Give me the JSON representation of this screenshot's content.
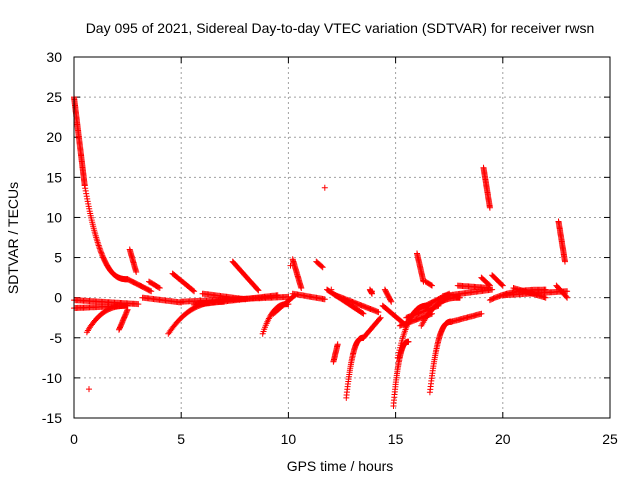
{
  "chart_data": {
    "type": "scatter",
    "title": "Day 095 of 2021, Sidereal Day-to-day VTEC variation (SDTVAR) for receiver rwsn",
    "xlabel": "GPS time / hours",
    "ylabel": "SDTVAR / TECUs",
    "xlim": [
      0,
      25
    ],
    "ylim": [
      -15,
      30
    ],
    "xticks": [
      0,
      5,
      10,
      15,
      20,
      25
    ],
    "yticks": [
      -15,
      -10,
      -5,
      0,
      5,
      10,
      15,
      20,
      25,
      30
    ],
    "grid": true,
    "marker": "+",
    "series": [
      {
        "name": "SDTVAR",
        "color": "#ff0000",
        "arcs": [
          {
            "x0": 0.0,
            "y0": 25.0,
            "x1": 0.5,
            "y1": 14.0,
            "kind": "line"
          },
          {
            "x0": 0.5,
            "y0": 14.0,
            "x1": 2.5,
            "y1": 2.3,
            "kind": "curve"
          },
          {
            "x0": 2.5,
            "y0": 2.3,
            "x1": 3.6,
            "y1": 0.8,
            "kind": "line"
          },
          {
            "x0": 0.0,
            "y0": -0.3,
            "x1": 3.0,
            "y1": -0.8,
            "kind": "line"
          },
          {
            "x0": 0.0,
            "y0": -1.3,
            "x1": 2.5,
            "y1": -1.0,
            "kind": "line"
          },
          {
            "x0": 0.6,
            "y0": -4.3,
            "x1": 2.5,
            "y1": -1.0,
            "kind": "curve"
          },
          {
            "x0": 2.1,
            "y0": -4.0,
            "x1": 2.5,
            "y1": -1.5,
            "kind": "line"
          },
          {
            "x0": 2.6,
            "y0": 6.0,
            "x1": 2.9,
            "y1": 3.2,
            "kind": "line"
          },
          {
            "x0": 3.5,
            "y0": 2.0,
            "x1": 4.0,
            "y1": 1.2,
            "kind": "line"
          },
          {
            "x0": 3.2,
            "y0": 0.0,
            "x1": 5.0,
            "y1": -0.6,
            "kind": "line"
          },
          {
            "x0": 4.6,
            "y0": 3.0,
            "x1": 5.6,
            "y1": 0.8,
            "kind": "line"
          },
          {
            "x0": 4.4,
            "y0": -4.5,
            "x1": 7.0,
            "y1": -0.5,
            "kind": "curve"
          },
          {
            "x0": 5.0,
            "y0": -0.5,
            "x1": 10.0,
            "y1": 0.1,
            "kind": "line"
          },
          {
            "x0": 5.6,
            "y0": -0.9,
            "x1": 9.5,
            "y1": 0.3,
            "kind": "line"
          },
          {
            "x0": 6.0,
            "y0": 0.5,
            "x1": 8.0,
            "y1": -0.2,
            "kind": "line"
          },
          {
            "x0": 7.4,
            "y0": 4.5,
            "x1": 8.6,
            "y1": 0.9,
            "kind": "line"
          },
          {
            "x0": 8.8,
            "y0": -4.5,
            "x1": 10.0,
            "y1": -0.8,
            "kind": "curve"
          },
          {
            "x0": 9.3,
            "y0": -2.0,
            "x1": 10.3,
            "y1": 0.3,
            "kind": "line"
          },
          {
            "x0": 10.2,
            "y0": 4.8,
            "x1": 10.6,
            "y1": 1.2,
            "kind": "line"
          },
          {
            "x0": 10.2,
            "y0": 0.5,
            "x1": 11.7,
            "y1": -0.2,
            "kind": "line"
          },
          {
            "x0": 11.3,
            "y0": 4.5,
            "x1": 11.6,
            "y1": 3.8,
            "kind": "line"
          },
          {
            "x0": 11.8,
            "y0": 1.0,
            "x1": 13.5,
            "y1": -2.0,
            "kind": "line"
          },
          {
            "x0": 12.2,
            "y0": 0.3,
            "x1": 14.2,
            "y1": -1.8,
            "kind": "line"
          },
          {
            "x0": 12.7,
            "y0": -12.5,
            "x1": 13.5,
            "y1": -5.0,
            "kind": "curve"
          },
          {
            "x0": 12.1,
            "y0": -8.0,
            "x1": 12.3,
            "y1": -5.8,
            "kind": "line"
          },
          {
            "x0": 13.5,
            "y0": -5.0,
            "x1": 14.3,
            "y1": -2.5,
            "kind": "line"
          },
          {
            "x0": 13.8,
            "y0": 1.0,
            "x1": 13.9,
            "y1": 0.5,
            "kind": "line"
          },
          {
            "x0": 14.4,
            "y0": -1.0,
            "x1": 15.5,
            "y1": -3.5,
            "kind": "line"
          },
          {
            "x0": 14.5,
            "y0": 1.0,
            "x1": 14.8,
            "y1": -0.5,
            "kind": "line"
          },
          {
            "x0": 14.9,
            "y0": -13.5,
            "x1": 15.6,
            "y1": -5.5,
            "kind": "curve"
          },
          {
            "x0": 15.1,
            "y0": -7.5,
            "x1": 16.5,
            "y1": -1.0,
            "kind": "curve"
          },
          {
            "x0": 15.5,
            "y0": -2.5,
            "x1": 17.0,
            "y1": -1.0,
            "kind": "line"
          },
          {
            "x0": 15.2,
            "y0": -3.5,
            "x1": 16.7,
            "y1": -2.0,
            "kind": "line"
          },
          {
            "x0": 16.0,
            "y0": 5.5,
            "x1": 16.3,
            "y1": 2.0,
            "kind": "line"
          },
          {
            "x0": 16.4,
            "y0": 2.0,
            "x1": 16.7,
            "y1": 1.5,
            "kind": "line"
          },
          {
            "x0": 16.2,
            "y0": -3.5,
            "x1": 18.0,
            "y1": 0.0,
            "kind": "curve"
          },
          {
            "x0": 16.4,
            "y0": -1.0,
            "x1": 17.5,
            "y1": 0.5,
            "kind": "line"
          },
          {
            "x0": 16.6,
            "y0": -11.8,
            "x1": 17.6,
            "y1": -3.0,
            "kind": "curve"
          },
          {
            "x0": 17.6,
            "y0": -3.0,
            "x1": 19.0,
            "y1": -2.0,
            "kind": "line"
          },
          {
            "x0": 17.2,
            "y0": 0.2,
            "x1": 19.5,
            "y1": 1.0,
            "kind": "line"
          },
          {
            "x0": 17.9,
            "y0": 1.5,
            "x1": 19.4,
            "y1": 1.2,
            "kind": "line"
          },
          {
            "x0": 19.0,
            "y0": 2.5,
            "x1": 19.4,
            "y1": 1.5,
            "kind": "line"
          },
          {
            "x0": 19.1,
            "y0": 16.2,
            "x1": 19.4,
            "y1": 11.2,
            "kind": "line"
          },
          {
            "x0": 19.5,
            "y0": 2.8,
            "x1": 20.0,
            "y1": 1.5,
            "kind": "line"
          },
          {
            "x0": 19.4,
            "y0": -0.3,
            "x1": 22.0,
            "y1": 1.0,
            "kind": "curve"
          },
          {
            "x0": 20.0,
            "y0": 0.3,
            "x1": 23.0,
            "y1": 0.8,
            "kind": "line"
          },
          {
            "x0": 20.5,
            "y0": 1.2,
            "x1": 22.0,
            "y1": 0.0,
            "kind": "line"
          },
          {
            "x0": 22.5,
            "y0": 1.5,
            "x1": 23.0,
            "y1": 0.0,
            "kind": "line"
          },
          {
            "x0": 22.6,
            "y0": 9.5,
            "x1": 22.9,
            "y1": 4.5,
            "kind": "line"
          }
        ],
        "points": [
          {
            "x": 0.7,
            "y": -11.4
          },
          {
            "x": 11.7,
            "y": 13.7
          },
          {
            "x": 12.0,
            "y": 1.0
          },
          {
            "x": 13.9,
            "y": 0.8
          },
          {
            "x": 10.1,
            "y": 4.0
          }
        ]
      }
    ]
  }
}
